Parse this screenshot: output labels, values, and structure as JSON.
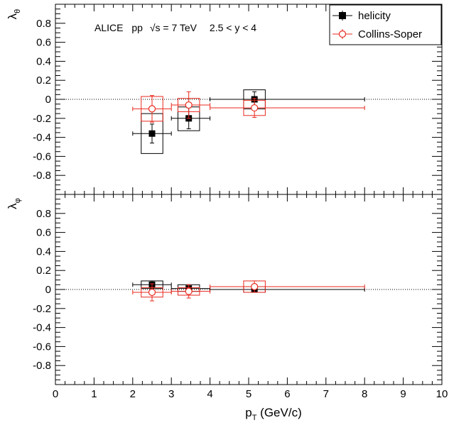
{
  "colors": {
    "helicity": "#000000",
    "collins_soper": "#e8291f",
    "axis": "#000000"
  },
  "chart_data": {
    "type": "scatter",
    "annotation": {
      "experiment": "ALICE",
      "system": "pp",
      "energy": "√s = 7 TeV",
      "rapidity": "2.5 < y < 4"
    },
    "xlabel": "p_T (GeV/c)",
    "xlim": [
      0,
      10
    ],
    "x_ticks": [
      "0",
      "1",
      "2",
      "3",
      "4",
      "5",
      "6",
      "7",
      "8",
      "9",
      "10"
    ],
    "legend": {
      "placement": "top-right",
      "entries": [
        {
          "name": "helicity",
          "marker": "filled-square"
        },
        {
          "name": "Collins-Soper",
          "marker": "open-circle"
        }
      ]
    },
    "panels": [
      {
        "ylabel": "λθ",
        "ylabel_main": "λ",
        "ylabel_sub": "θ",
        "ylim": [
          -1,
          1
        ],
        "y_ticks": [
          {
            "value": 0.8,
            "label": "0.8"
          },
          {
            "value": 0.6,
            "label": "0.6"
          },
          {
            "value": 0.4,
            "label": "0.4"
          },
          {
            "value": 0.2,
            "label": "0.2"
          },
          {
            "value": 0,
            "label": "0"
          },
          {
            "value": -0.2,
            "label": "-0.2"
          },
          {
            "value": -0.4,
            "label": "-0.4"
          },
          {
            "value": -0.6,
            "label": "-0.6"
          },
          {
            "value": -0.8,
            "label": "-0.8"
          }
        ],
        "series": [
          {
            "name": "helicity",
            "points": [
              {
                "x": 2.5,
                "xlow": 2.0,
                "xhigh": 3.0,
                "y": -0.36,
                "stat": 0.1,
                "syst_low": -0.57,
                "syst_high": -0.15
              },
              {
                "x": 3.45,
                "xlow": 3.0,
                "xhigh": 4.0,
                "y": -0.2,
                "stat": 0.11,
                "syst_low": -0.33,
                "syst_high": -0.08
              },
              {
                "x": 5.15,
                "xlow": 4.0,
                "xhigh": 8.0,
                "y": 0.0,
                "stat": 0.08,
                "syst_low": -0.1,
                "syst_high": 0.1
              }
            ]
          },
          {
            "name": "Collins-Soper",
            "points": [
              {
                "x": 2.5,
                "xlow": 2.0,
                "xhigh": 3.0,
                "y": -0.1,
                "stat": 0.14,
                "syst_low": -0.23,
                "syst_high": 0.03
              },
              {
                "x": 3.45,
                "xlow": 3.0,
                "xhigh": 4.0,
                "y": -0.06,
                "stat": 0.14,
                "syst_low": -0.13,
                "syst_high": 0.01
              },
              {
                "x": 5.15,
                "xlow": 4.0,
                "xhigh": 8.0,
                "y": -0.09,
                "stat": 0.1,
                "syst_low": -0.17,
                "syst_high": -0.01
              }
            ]
          }
        ]
      },
      {
        "ylabel": "λφ",
        "ylabel_main": "λ",
        "ylabel_sub": "φ",
        "ylim": [
          -1,
          1
        ],
        "y_ticks": [
          {
            "value": 0.8,
            "label": "0.8"
          },
          {
            "value": 0.6,
            "label": "0.6"
          },
          {
            "value": 0.4,
            "label": "0.4"
          },
          {
            "value": 0.2,
            "label": "0.2"
          },
          {
            "value": 0,
            "label": "0"
          },
          {
            "value": -0.2,
            "label": "-0.2"
          },
          {
            "value": -0.4,
            "label": "-0.4"
          },
          {
            "value": -0.6,
            "label": "-0.6"
          },
          {
            "value": -0.8,
            "label": "-0.8"
          }
        ],
        "series": [
          {
            "name": "helicity",
            "points": [
              {
                "x": 2.5,
                "xlow": 2.0,
                "xhigh": 3.0,
                "y": 0.05,
                "stat": 0.04,
                "syst_low": 0.01,
                "syst_high": 0.09
              },
              {
                "x": 3.45,
                "xlow": 3.0,
                "xhigh": 4.0,
                "y": 0.01,
                "stat": 0.04,
                "syst_low": -0.02,
                "syst_high": 0.05
              },
              {
                "x": 5.15,
                "xlow": 4.0,
                "xhigh": 8.0,
                "y": 0.0,
                "stat": 0.03,
                "syst_low": -0.03,
                "syst_high": 0.03
              }
            ]
          },
          {
            "name": "Collins-Soper",
            "points": [
              {
                "x": 2.5,
                "xlow": 2.0,
                "xhigh": 3.0,
                "y": -0.03,
                "stat": 0.09,
                "syst_low": -0.08,
                "syst_high": 0.02
              },
              {
                "x": 3.45,
                "xlow": 3.0,
                "xhigh": 4.0,
                "y": -0.02,
                "stat": 0.07,
                "syst_low": -0.06,
                "syst_high": 0.02
              },
              {
                "x": 5.15,
                "xlow": 4.0,
                "xhigh": 8.0,
                "y": 0.03,
                "stat": 0.06,
                "syst_low": -0.03,
                "syst_high": 0.09
              }
            ]
          }
        ]
      }
    ]
  }
}
